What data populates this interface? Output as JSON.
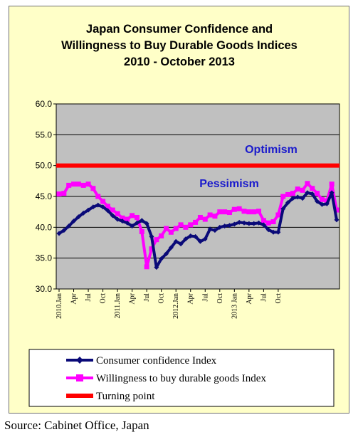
{
  "chart_data": {
    "type": "line",
    "title": [
      "Japan Consumer Confidence and",
      "Willingness to Buy Durable Goods Indices",
      "2010 -  October 2013"
    ],
    "ylim": [
      30,
      60
    ],
    "yticks": [
      "60.0",
      "55.0",
      "50.0",
      "45.0",
      "40.0",
      "35.0",
      "30.0"
    ],
    "x_tick_labels": [
      "2010.Jan",
      "Apr",
      "Jul",
      "Oct",
      "2011.Jan",
      "Apr",
      "Jul",
      "Oct",
      "2012.Jan",
      "Apr",
      "Jul",
      "Oct",
      "2013 Jan",
      "Apr",
      "Jul",
      "Oct"
    ],
    "annotations": [
      "Optimism",
      "Pessimism"
    ],
    "source": "Source: Cabinet Office, Japan",
    "series": [
      {
        "name": "Consumer confidence Index",
        "color": "#0a0a78",
        "values": [
          39.0,
          39.5,
          40.2,
          41.0,
          41.7,
          42.3,
          42.8,
          43.3,
          43.6,
          43.3,
          42.7,
          41.9,
          41.3,
          41.0,
          40.7,
          40.2,
          40.7,
          41.1,
          40.6,
          38.5,
          33.5,
          34.9,
          35.7,
          36.7,
          37.7,
          37.3,
          38.1,
          38.6,
          38.5,
          37.7,
          38.1,
          39.7,
          39.5,
          40.0,
          40.2,
          40.3,
          40.5,
          40.8,
          40.7,
          40.6,
          40.6,
          40.7,
          40.4,
          39.6,
          39.2,
          39.2,
          43.0,
          44.0,
          44.7,
          44.9,
          44.7,
          45.6,
          45.4,
          44.2,
          43.7,
          43.8,
          45.6,
          41.2
        ]
      },
      {
        "name": "Willingness to buy durable goods Index",
        "color": "#ff00ff",
        "values": [
          45.4,
          45.5,
          46.8,
          47.0,
          47.0,
          46.8,
          47.0,
          46.3,
          45.0,
          44.2,
          43.4,
          42.8,
          42.2,
          41.5,
          41.3,
          41.9,
          41.6,
          39.3,
          33.6,
          36.5,
          38.0,
          38.6,
          39.8,
          39.2,
          39.8,
          40.4,
          40.0,
          40.4,
          40.8,
          41.6,
          41.3,
          42.0,
          41.8,
          42.5,
          42.5,
          42.4,
          42.9,
          43.0,
          42.6,
          42.5,
          42.5,
          42.6,
          41.1,
          40.7,
          40.9,
          42.0,
          45.0,
          45.3,
          45.5,
          46.2,
          46.0,
          47.1,
          46.3,
          45.5,
          44.5,
          44.3,
          47.0,
          42.8
        ]
      },
      {
        "name": "Turning point",
        "color": "#ff0000",
        "values": [
          50.0,
          50.0
        ]
      }
    ]
  }
}
